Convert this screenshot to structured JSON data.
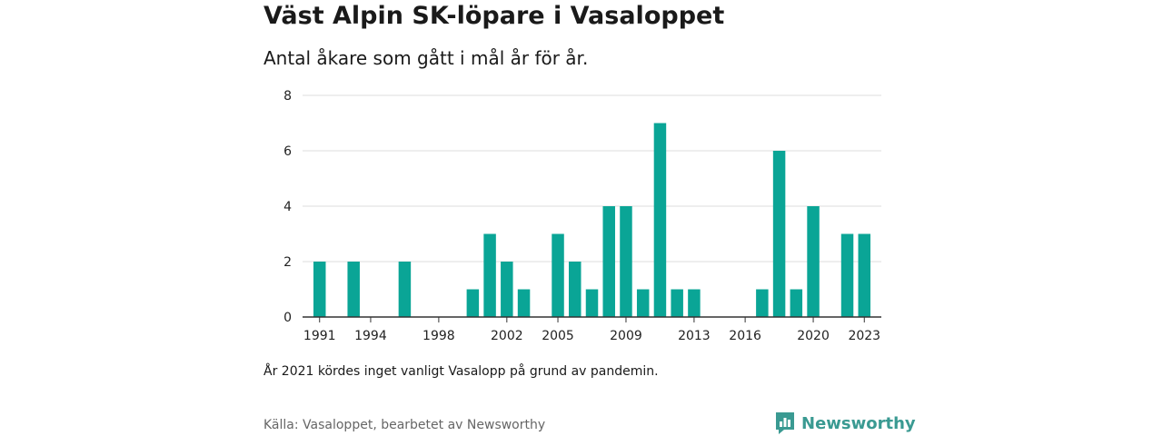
{
  "header": {
    "title": "Väst Alpin SK-löpare i Vasaloppet",
    "subtitle": "Antal åkare som gått i mål år för år."
  },
  "footer": {
    "note": "År 2021 kördes inget vanligt Vasalopp på grund av pandemin.",
    "source": "Källa: Vasaloppet, bearbetet av Newsworthy",
    "logo_text": "Newsworthy",
    "logo_icon": "newsworthy-logo-icon"
  },
  "colors": {
    "bar": "#0aa596",
    "grid": "#dddddd",
    "axis": "#333333",
    "logo": "#3a9a92"
  },
  "chart_data": {
    "type": "bar",
    "title": "Väst Alpin SK-löpare i Vasaloppet",
    "subtitle": "Antal åkare som gått i mål år för år.",
    "xlabel": "",
    "ylabel": "",
    "x": [
      1991,
      1993,
      1996,
      2000,
      2001,
      2002,
      2003,
      2005,
      2006,
      2007,
      2008,
      2009,
      2010,
      2011,
      2012,
      2013,
      2017,
      2018,
      2019,
      2020,
      2022,
      2023
    ],
    "values": [
      2,
      2,
      2,
      1,
      3,
      2,
      1,
      3,
      2,
      1,
      4,
      4,
      1,
      7,
      1,
      1,
      1,
      6,
      1,
      4,
      3,
      3
    ],
    "x_range": [
      1990,
      2024
    ],
    "x_ticks": [
      1991,
      1994,
      1998,
      2002,
      2005,
      2009,
      2013,
      2016,
      2020,
      2023
    ],
    "y_ticks": [
      0,
      2,
      4,
      6,
      8
    ],
    "ylim": [
      0,
      8
    ],
    "grid": true,
    "legend": "none"
  }
}
